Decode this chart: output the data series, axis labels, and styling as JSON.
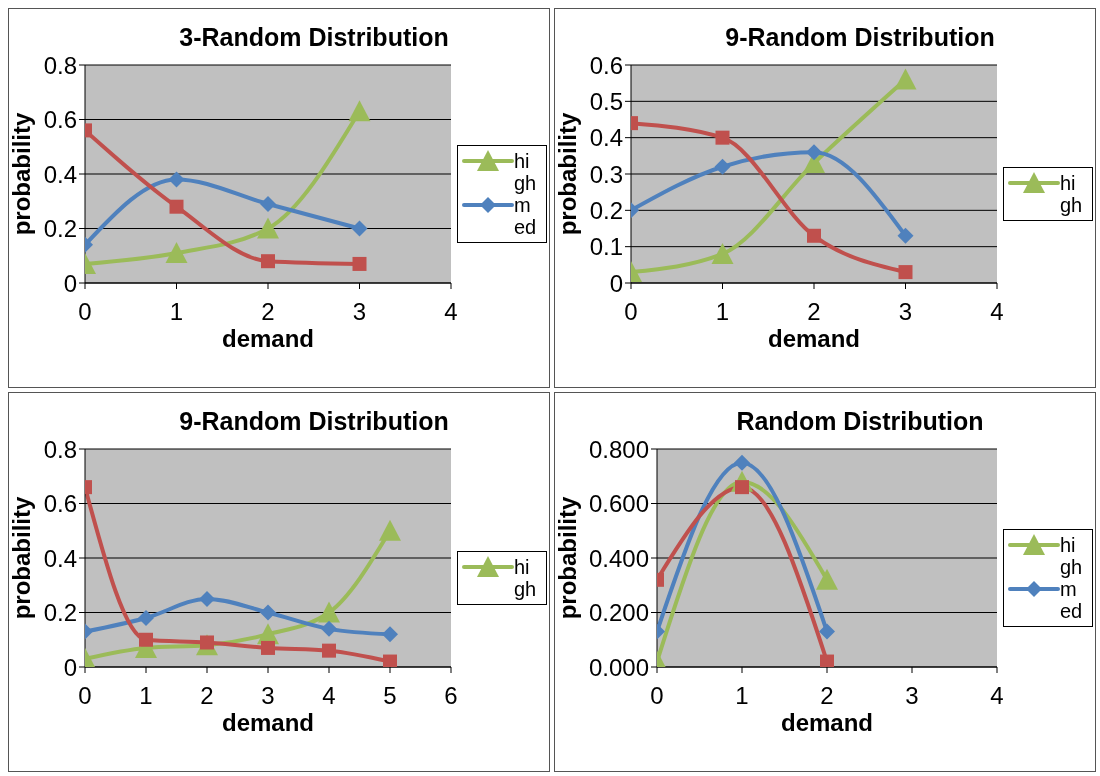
{
  "chart_data": [
    {
      "type": "line",
      "title": "3-Random Distribution",
      "xlabel": "demand",
      "ylabel": "probability",
      "x": [
        0,
        1,
        2,
        3
      ],
      "xlim": [
        0,
        4
      ],
      "xticks": [
        0,
        1,
        2,
        3,
        4
      ],
      "ylim": [
        0,
        0.8
      ],
      "yticks": [
        0,
        0.2,
        0.4,
        0.6,
        0.8
      ],
      "grid": "y",
      "legend": "right",
      "series": [
        {
          "name": "high",
          "color": "#9bbb59",
          "marker": "triangle",
          "values": [
            0.07,
            0.11,
            0.2,
            0.63
          ]
        },
        {
          "name": "med",
          "color": "#4f81bd",
          "marker": "diamond",
          "values": [
            0.14,
            0.38,
            0.29,
            0.2
          ]
        },
        {
          "color": "#c0504d",
          "marker": "square",
          "values": [
            0.56,
            0.28,
            0.08,
            0.07
          ]
        }
      ]
    },
    {
      "type": "line",
      "title": "9-Random Distribution",
      "xlabel": "demand",
      "ylabel": "probability",
      "x": [
        0,
        1,
        2,
        3
      ],
      "xlim": [
        0,
        4
      ],
      "xticks": [
        0,
        1,
        2,
        3,
        4
      ],
      "ylim": [
        0,
        0.6
      ],
      "yticks": [
        0,
        0.1,
        0.2,
        0.3,
        0.4,
        0.5,
        0.6
      ],
      "grid": "y",
      "legend": "right",
      "series": [
        {
          "name": "high",
          "color": "#9bbb59",
          "marker": "triangle",
          "values": [
            0.03,
            0.08,
            0.33,
            0.56
          ]
        },
        {
          "color": "#4f81bd",
          "marker": "diamond",
          "values": [
            0.2,
            0.32,
            0.36,
            0.13
          ]
        },
        {
          "color": "#c0504d",
          "marker": "square",
          "values": [
            0.44,
            0.4,
            0.13,
            0.03
          ]
        }
      ]
    },
    {
      "type": "line",
      "title": "9-Random Distribution",
      "xlabel": "demand",
      "ylabel": "probability",
      "x": [
        0,
        1,
        2,
        3,
        4,
        5
      ],
      "xlim": [
        0,
        6
      ],
      "xticks": [
        0,
        1,
        2,
        3,
        4,
        5,
        6
      ],
      "ylim": [
        0,
        0.8
      ],
      "yticks": [
        0,
        0.2,
        0.4,
        0.6,
        0.8
      ],
      "grid": "y",
      "legend": "right",
      "series": [
        {
          "name": "high",
          "color": "#9bbb59",
          "marker": "triangle",
          "values": [
            0.03,
            0.07,
            0.08,
            0.12,
            0.2,
            0.5
          ]
        },
        {
          "color": "#4f81bd",
          "marker": "diamond",
          "values": [
            0.13,
            0.18,
            0.25,
            0.2,
            0.14,
            0.12
          ]
        },
        {
          "color": "#c0504d",
          "marker": "square",
          "values": [
            0.66,
            0.1,
            0.09,
            0.07,
            0.06,
            0.02
          ]
        }
      ]
    },
    {
      "type": "line",
      "title": "Random Distribution",
      "xlabel": "demand",
      "ylabel": "probability",
      "x": [
        0,
        1,
        2
      ],
      "xlim": [
        0,
        4
      ],
      "xticks": [
        0,
        1,
        2,
        3,
        4
      ],
      "ylim": [
        0,
        0.8
      ],
      "yticks": [
        {
          "value": 0,
          "label": "0.000"
        },
        {
          "value": 0.2,
          "label": "0.200"
        },
        {
          "value": 0.4,
          "label": "0.400"
        },
        {
          "value": 0.6,
          "label": "0.600"
        },
        {
          "value": 0.8,
          "label": "0.800"
        }
      ],
      "grid": "y",
      "legend": "right",
      "series": [
        {
          "name": "high",
          "color": "#9bbb59",
          "marker": "triangle",
          "values": [
            0.02,
            0.68,
            0.32
          ]
        },
        {
          "name": "med",
          "color": "#4f81bd",
          "marker": "diamond",
          "values": [
            0.13,
            0.75,
            0.13
          ]
        },
        {
          "color": "#c0504d",
          "marker": "square",
          "values": [
            0.32,
            0.66,
            0.02
          ]
        }
      ]
    }
  ]
}
